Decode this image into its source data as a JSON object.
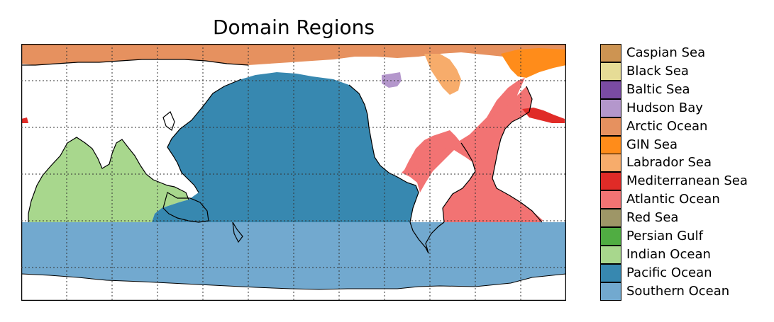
{
  "title": "Domain Regions",
  "map": {
    "projection": "equirectangular",
    "central_longitude": 180,
    "gridlines": "dotted",
    "ocean_fill": "#ffffff",
    "land_fill": "#ffffff"
  },
  "legend": {
    "items": [
      {
        "label": "Caspian Sea",
        "color": "#cd9452"
      },
      {
        "label": "Black Sea",
        "color": "#e6dc96"
      },
      {
        "label": "Baltic Sea",
        "color": "#7a4ba3"
      },
      {
        "label": "Hudson Bay",
        "color": "#b497cc"
      },
      {
        "label": "Arctic Ocean",
        "color": "#e6915f"
      },
      {
        "label": "GIN Sea",
        "color": "#ff8c1a"
      },
      {
        "label": "Labrador Sea",
        "color": "#f7ac6b"
      },
      {
        "label": "Mediterranean Sea",
        "color": "#e02b27"
      },
      {
        "label": "Atlantic Ocean",
        "color": "#f27373"
      },
      {
        "label": "Red Sea",
        "color": "#9e9667"
      },
      {
        "label": "Persian Gulf",
        "color": "#50ad42"
      },
      {
        "label": "Indian Ocean",
        "color": "#a8d78d"
      },
      {
        "label": "Pacific Ocean",
        "color": "#3788b0"
      },
      {
        "label": "Southern Ocean",
        "color": "#72a9cf"
      }
    ]
  }
}
